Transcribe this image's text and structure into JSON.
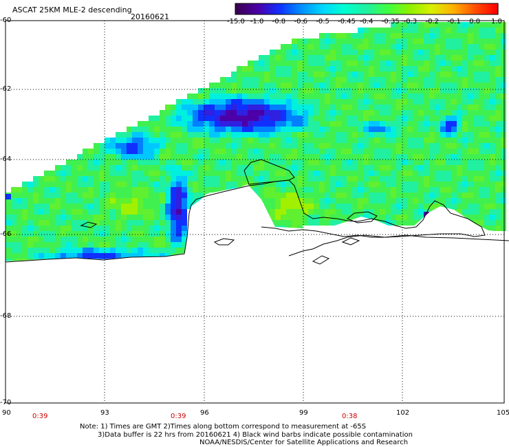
{
  "header": {
    "title": "ASCAT 25KM MLE-2 descending",
    "date": "20160621"
  },
  "colorbar": {
    "labels": [
      "-15.0",
      "-1.0",
      "-0.8",
      "-0.6",
      "-0.5",
      "-0.45",
      "-0.4",
      "-0.35",
      "-0.3",
      "-0.2",
      "-0.1",
      "0.0",
      "1.0"
    ],
    "colors": [
      "#3a0050",
      "#4b00a8",
      "#1030ff",
      "#0090ff",
      "#00d8ff",
      "#00ffd0",
      "#20f0a0",
      "#40ff40",
      "#90f000",
      "#d8f000",
      "#ffb000",
      "#ff5000",
      "#ff0000"
    ]
  },
  "map": {
    "lat_labels": [
      "-60",
      "-62",
      "-64",
      "-66",
      "-68",
      "-70"
    ],
    "lon_labels": [
      "90",
      "93",
      "96",
      "99",
      "102",
      "105"
    ],
    "times": [
      "0:39",
      "0:39",
      "0:38"
    ]
  },
  "notes": {
    "line1": "Note: 1) Times are GMT 2)Times along bottom correspond to measurement at -65S",
    "line2": "3)Data buffer is 22 hrs from 20160621 4) Black wind barbs indicate possible contamination",
    "line3": "NOAA/NESDIS/Center for Satellite Applications and Research"
  }
}
